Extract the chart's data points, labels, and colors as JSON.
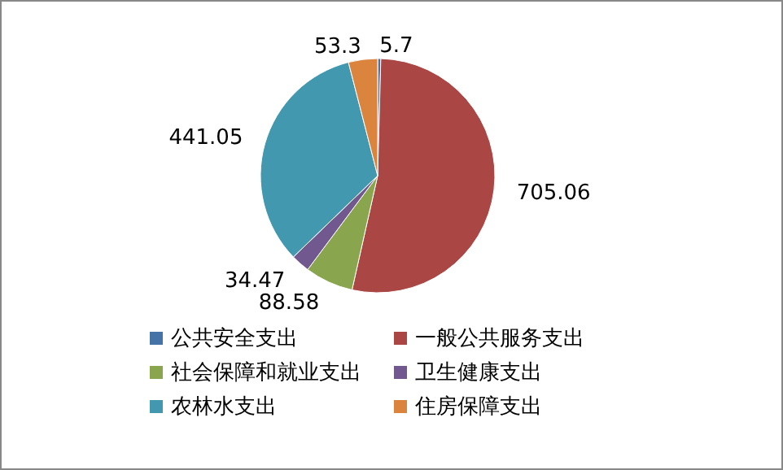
{
  "chart_data": {
    "type": "pie",
    "categories": [
      "公共安全支出",
      "一般公共服务支出",
      "社会保障和就业支出",
      "卫生健康支出",
      "农林水支出",
      "住房保障支出"
    ],
    "values": [
      5.7,
      705.06,
      88.58,
      34.47,
      441.05,
      53.3
    ],
    "colors": [
      "#4572a7",
      "#aa4643",
      "#89a54e",
      "#71588f",
      "#4198af",
      "#db843d"
    ],
    "data_labels": true,
    "legend": "bottom"
  }
}
